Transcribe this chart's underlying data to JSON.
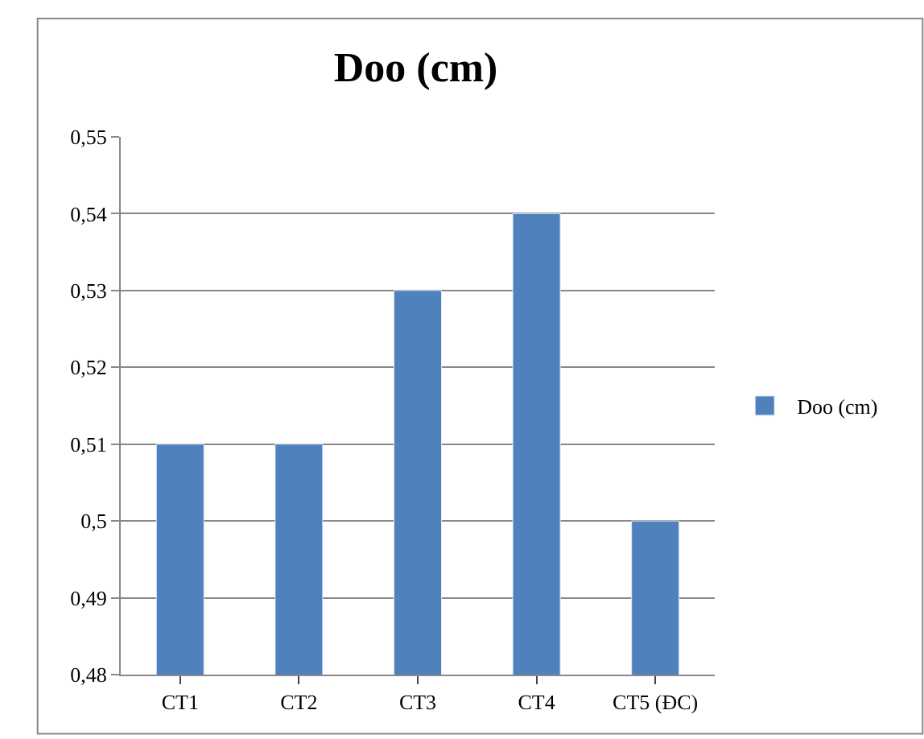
{
  "chart_data": {
    "type": "bar",
    "title": "Doo (cm)",
    "categories": [
      "CT1",
      "CT2",
      "CT3",
      "CT4",
      "CT5 (ĐC)"
    ],
    "series": [
      {
        "name": "Doo (cm)",
        "color": "#4f81bd",
        "values": [
          0.51,
          0.51,
          0.53,
          0.54,
          0.5
        ]
      }
    ],
    "ylim": [
      0.48,
      0.55
    ],
    "yticks": [
      {
        "value": 0.48,
        "label": "0,48"
      },
      {
        "value": 0.49,
        "label": "0,49"
      },
      {
        "value": 0.5,
        "label": "0,5"
      },
      {
        "value": 0.51,
        "label": "0,51"
      },
      {
        "value": 0.52,
        "label": "0,52"
      },
      {
        "value": 0.53,
        "label": "0,53"
      },
      {
        "value": 0.54,
        "label": "0,54"
      },
      {
        "value": 0.55,
        "label": "0,55"
      }
    ],
    "grid": "y",
    "legend": "right"
  }
}
